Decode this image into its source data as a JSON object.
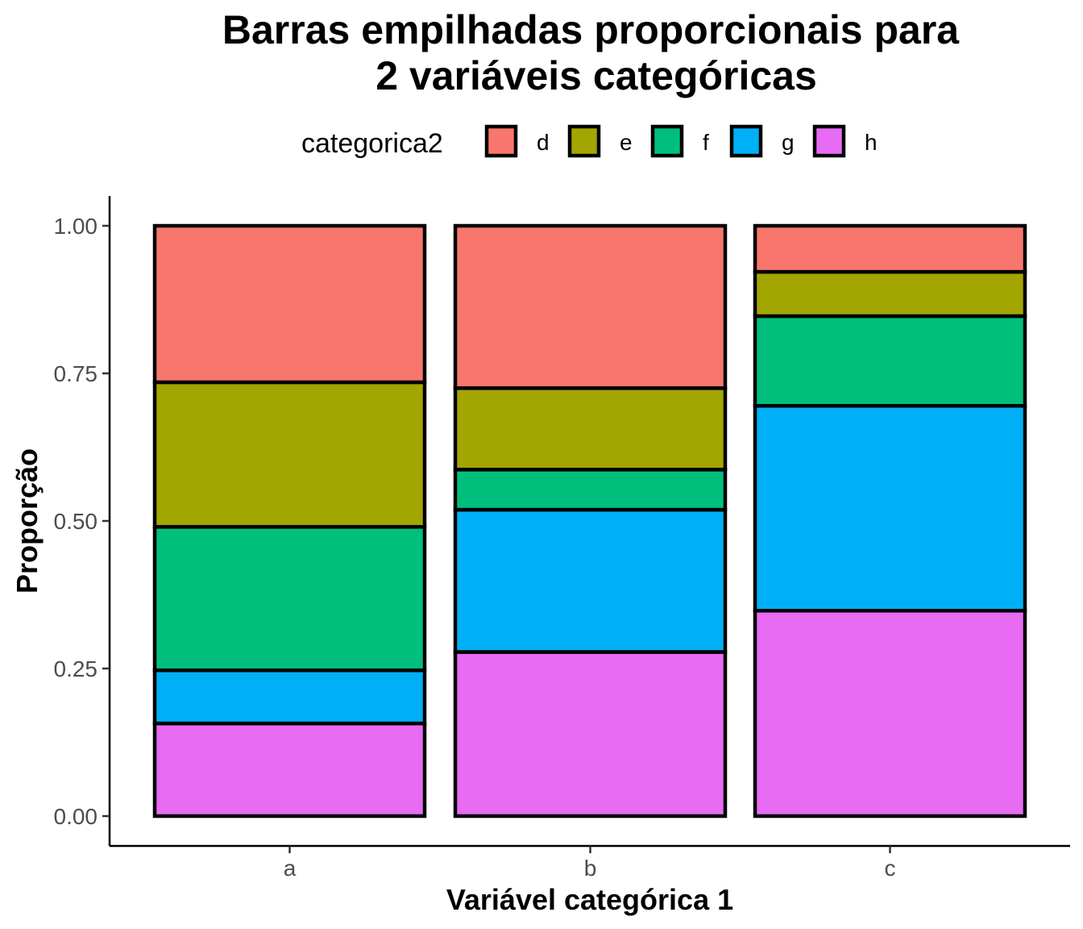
{
  "chart_data": {
    "type": "bar",
    "stacked": true,
    "proportional": true,
    "title_lines": [
      "Barras empilhadas proporcionais para",
      "2 variáveis categóricas"
    ],
    "xlabel": "Variável categórica 1",
    "ylabel": "Proporção",
    "ylim": [
      0,
      1
    ],
    "yticks": [
      "0.00",
      "0.25",
      "0.50",
      "0.75",
      "1.00"
    ],
    "categories": [
      "a",
      "b",
      "c"
    ],
    "legend": {
      "title": "categorica2",
      "position": "top"
    },
    "grid": false,
    "series": [
      {
        "name": "d",
        "color": "#F8766D",
        "values": [
          0.265,
          0.275,
          0.078
        ]
      },
      {
        "name": "e",
        "color": "#A3A500",
        "values": [
          0.245,
          0.138,
          0.075
        ]
      },
      {
        "name": "f",
        "color": "#00BF7D",
        "values": [
          0.243,
          0.068,
          0.152
        ]
      },
      {
        "name": "g",
        "color": "#00B0F6",
        "values": [
          0.09,
          0.241,
          0.347
        ]
      },
      {
        "name": "h",
        "color": "#E76BF3",
        "values": [
          0.157,
          0.278,
          0.348
        ]
      }
    ]
  }
}
